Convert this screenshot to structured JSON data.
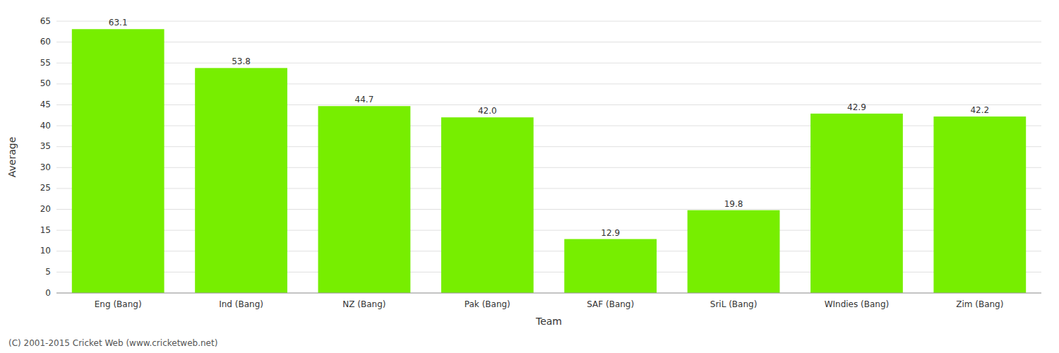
{
  "chart_data": {
    "type": "bar",
    "xlabel": "Team",
    "ylabel": "Average",
    "categories": [
      "Eng (Bang)",
      "Ind (Bang)",
      "NZ (Bang)",
      "Pak (Bang)",
      "SAF (Bang)",
      "SriL (Bang)",
      "WIndies (Bang)",
      "Zim (Bang)"
    ],
    "values": [
      63.1,
      53.8,
      44.7,
      42.0,
      12.9,
      19.8,
      42.9,
      42.2
    ],
    "value_labels": [
      "63.1",
      "53.8",
      "44.7",
      "42.0",
      "12.9",
      "19.8",
      "42.9",
      "42.2"
    ],
    "color": "#77ee00",
    "ylim": [
      0,
      65
    ],
    "yticks": [
      0,
      5,
      10,
      15,
      20,
      25,
      30,
      35,
      40,
      45,
      50,
      55,
      60,
      65
    ],
    "grid": true,
    "data_labels": true,
    "annotations": [
      "(C) 2001-2015 Cricket Web (www.cricketweb.net)"
    ]
  }
}
